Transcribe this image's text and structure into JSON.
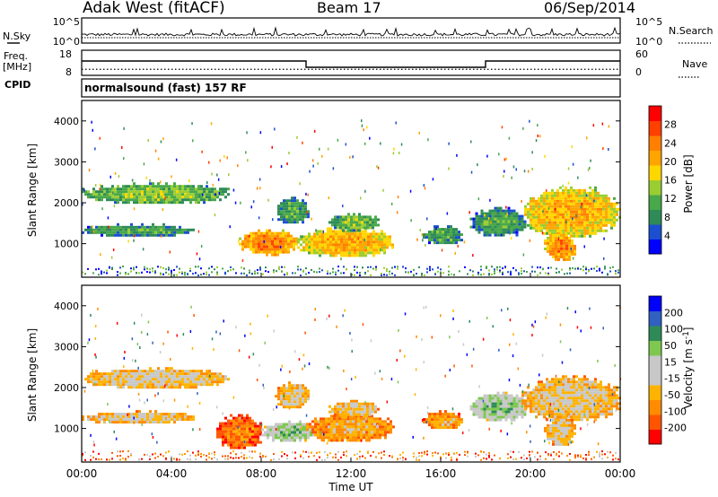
{
  "header": {
    "station": "Adak West (fitACF)",
    "beam": "Beam 17",
    "date": "06/Sep/2014"
  },
  "labels": {
    "nsky": "N.Sky",
    "nsearch": "N.Search",
    "freq_top": "Freq.",
    "freq_unit": "[MHz]",
    "nave": "Nave",
    "cpid": "CPID",
    "cpid_value": "normalsound (fast) 157 RF",
    "noise_tick_high": "10^5",
    "noise_tick_low": "10^0"
  },
  "colors": {
    "power_scale": [
      "#0000ff",
      "#1b4fd0",
      "#2e8b57",
      "#49a84a",
      "#9acd32",
      "#ffd700",
      "#ffa500",
      "#ff7f00",
      "#ff4000",
      "#ff0000"
    ],
    "velocity_scale": [
      "#ff0000",
      "#ff5500",
      "#ff8c00",
      "#ffb300",
      "#c8c8c8",
      "#c8c8c8",
      "#7ec850",
      "#2e8b57",
      "#3060c0",
      "#0000ff"
    ]
  },
  "chart_data": [
    {
      "type": "line",
      "name": "noise-panel",
      "x_range": [
        "00:00",
        "24:00"
      ],
      "y_ticks_left": [
        "10^5",
        "10^0"
      ],
      "y_ticks_right": [
        "10^5",
        "10^0"
      ],
      "left_label": "N.Sky",
      "right_label": "N.Search"
    },
    {
      "type": "line",
      "name": "frequency-panel",
      "ylabel": "Freq. [MHz]",
      "y_ticks_left": [
        18,
        8
      ],
      "y_ticks_right": [
        60,
        0
      ],
      "right_label": "Nave",
      "freq_series": [
        {
          "start_h": 0.0,
          "end_h": 10.0,
          "value": 14
        },
        {
          "start_h": 10.0,
          "end_h": 18.0,
          "value": 10.5
        },
        {
          "start_h": 18.0,
          "end_h": 24.0,
          "value": 14
        }
      ],
      "nave_value": 8
    },
    {
      "type": "heatmap",
      "name": "power-panel",
      "xlabel": "",
      "ylabel": "Slant Range [km]",
      "ylim": [
        180,
        4500
      ],
      "y_ticks": [
        1000,
        2000,
        3000,
        4000
      ],
      "colorbar_label": "Power [dB]",
      "colorbar_ticks": [
        "4",
        "8",
        "12",
        "16",
        "20",
        "24",
        "28"
      ],
      "regions": [
        {
          "t0": 0.0,
          "t1": 6.6,
          "r0": 2000,
          "r1": 2500,
          "level": 4
        },
        {
          "t0": 0.0,
          "t1": 5.0,
          "r0": 1200,
          "r1": 1500,
          "level": 3
        },
        {
          "t0": 8.6,
          "t1": 10.1,
          "r0": 1500,
          "r1": 2150,
          "level": 3
        },
        {
          "t0": 7.0,
          "t1": 9.6,
          "r0": 750,
          "r1": 1350,
          "level": 7
        },
        {
          "t0": 9.6,
          "t1": 13.9,
          "r0": 700,
          "r1": 1400,
          "level": 6
        },
        {
          "t0": 11.0,
          "t1": 13.2,
          "r0": 1350,
          "r1": 1750,
          "level": 4
        },
        {
          "t0": 15.2,
          "t1": 16.9,
          "r0": 1000,
          "r1": 1450,
          "level": 3
        },
        {
          "t0": 17.3,
          "t1": 19.8,
          "r0": 1200,
          "r1": 1900,
          "level": 3
        },
        {
          "t0": 19.6,
          "t1": 24.0,
          "r0": 1200,
          "r1": 2400,
          "level": 6
        },
        {
          "t0": 20.6,
          "t1": 22.0,
          "r0": 600,
          "r1": 1300,
          "level": 7
        }
      ]
    },
    {
      "type": "heatmap",
      "name": "velocity-panel",
      "xlabel": "Time UT",
      "ylabel": "Slant Range [km]",
      "ylim": [
        180,
        4500
      ],
      "y_ticks": [
        1000,
        2000,
        3000,
        4000
      ],
      "x_ticks": [
        "00:00",
        "04:00",
        "08:00",
        "12:00",
        "16:00",
        "20:00",
        "00:00"
      ],
      "colorbar_label": "Velocity [m s^-1]",
      "colorbar_ticks": [
        "-200",
        "-100",
        "-50",
        "-15",
        "15",
        "50",
        "100",
        "200"
      ],
      "regions": [
        {
          "t0": 0.0,
          "t1": 6.6,
          "r0": 2000,
          "r1": 2500,
          "level": 4
        },
        {
          "t0": 0.0,
          "t1": 5.0,
          "r0": 1150,
          "r1": 1450,
          "level": 4
        },
        {
          "t0": 8.6,
          "t1": 10.1,
          "r0": 1500,
          "r1": 2150,
          "level": 4
        },
        {
          "t0": 6.0,
          "t1": 8.0,
          "r0": 500,
          "r1": 1350,
          "level": 2
        },
        {
          "t0": 8.0,
          "t1": 10.5,
          "r0": 700,
          "r1": 1200,
          "level": 6
        },
        {
          "t0": 10.0,
          "t1": 13.9,
          "r0": 700,
          "r1": 1400,
          "level": 3
        },
        {
          "t0": 11.0,
          "t1": 13.2,
          "r0": 1300,
          "r1": 1700,
          "level": 4
        },
        {
          "t0": 15.2,
          "t1": 16.9,
          "r0": 1000,
          "r1": 1450,
          "level": 3
        },
        {
          "t0": 17.3,
          "t1": 19.8,
          "r0": 1200,
          "r1": 1900,
          "level": 6
        },
        {
          "t0": 19.6,
          "t1": 24.0,
          "r0": 1200,
          "r1": 2300,
          "level": 4
        },
        {
          "t0": 20.6,
          "t1": 22.0,
          "r0": 600,
          "r1": 1300,
          "level": 4
        }
      ]
    }
  ]
}
